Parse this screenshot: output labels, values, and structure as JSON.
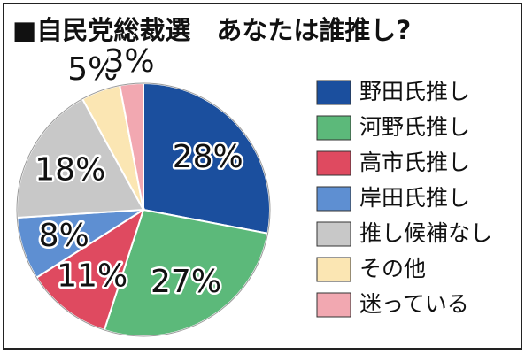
{
  "chart_data": {
    "type": "pie",
    "title": "■自民党総裁選　あなたは誰推し?",
    "categories": [
      "野田氏推し",
      "河野氏推し",
      "高市氏推し",
      "岸田氏推し",
      "推し候補なし",
      "その他",
      "迷っている"
    ],
    "values": [
      28,
      27,
      11,
      8,
      18,
      5,
      3
    ],
    "value_labels": [
      "28%",
      "27%",
      "11%",
      "8%",
      "18%",
      "5%",
      "3%"
    ],
    "colors": [
      "#1b4f9e",
      "#5cb97a",
      "#df4a60",
      "#5e8fd2",
      "#c8c8c8",
      "#fbe6b3",
      "#f2a8b1"
    ]
  }
}
